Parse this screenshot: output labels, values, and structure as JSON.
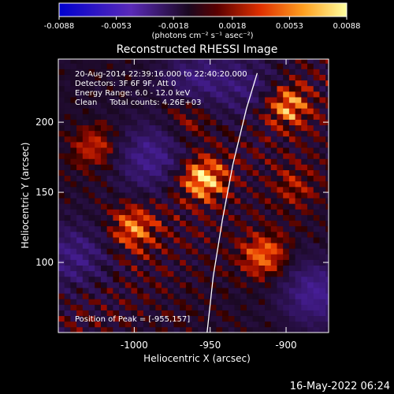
{
  "colorbar": {
    "ticks": [
      "-0.0088",
      "-0.0053",
      "-0.0018",
      "0.0018",
      "0.0053",
      "0.0088"
    ],
    "tick_values": [
      -0.0088,
      -0.0053,
      -0.0018,
      0.0018,
      0.0053,
      0.0088
    ],
    "range": [
      -0.0088,
      0.0088
    ],
    "units_label": "(photons cm⁻² s⁻¹ asec⁻²)"
  },
  "plot": {
    "title": "Reconstructed RHESSI Image",
    "info_lines": [
      "20-Aug-2014 22:39:16.000 to 22:40:20.000",
      "Detectors: 3F 6F 9F, Att 0",
      "Energy Range: 6.0 - 12.0 keV",
      "Clean     Total counts: 4.26E+03"
    ],
    "peak_text": "Position of Peak = [-955,157]",
    "footer_date": "16-May-2022 06:24"
  },
  "chart_data": {
    "type": "heatmap",
    "title": "Reconstructed RHESSI Image",
    "xlabel": "Heliocentric X (arcsec)",
    "ylabel": "Heliocentric Y (arcsec)",
    "xlim": [
      -1050,
      -872
    ],
    "ylim": [
      50,
      245
    ],
    "xticks": [
      -1000,
      -950,
      -900
    ],
    "xtick_labels": [
      "-1000",
      "-950",
      "-900"
    ],
    "yticks": [
      100,
      150,
      200
    ],
    "ytick_labels": [
      "100",
      "150",
      "200"
    ],
    "colorscale": "dark-blue to purple to black to red to orange to yellow to white",
    "value_range": [
      -0.0088,
      0.0088
    ],
    "peak_position": [
      -955,
      157
    ],
    "limb": [
      [
        -952,
        50
      ],
      [
        -948,
        90
      ],
      [
        -942,
        130
      ],
      [
        -935,
        170
      ],
      [
        -926,
        210
      ],
      [
        -919,
        235
      ]
    ],
    "sources": [
      {
        "x": -955,
        "y": 160,
        "value": 0.0088
      },
      {
        "x": -900,
        "y": 212,
        "value": 0.0075
      },
      {
        "x": -1000,
        "y": 125,
        "value": 0.0065
      },
      {
        "x": -915,
        "y": 105,
        "value": 0.0062
      },
      {
        "x": -1025,
        "y": 182,
        "value": 0.0045
      },
      {
        "x": -965,
        "y": 205,
        "value": 0.004
      },
      {
        "x": -895,
        "y": 155,
        "value": 0.003
      }
    ],
    "negative_regions": [
      {
        "x": -990,
        "y": 175,
        "value": -0.007
      },
      {
        "x": -880,
        "y": 78,
        "value": -0.0075
      },
      {
        "x": -1040,
        "y": 105,
        "value": -0.006
      },
      {
        "x": -960,
        "y": 230,
        "value": -0.0055
      },
      {
        "x": -925,
        "y": 225,
        "value": -0.0045
      }
    ]
  }
}
